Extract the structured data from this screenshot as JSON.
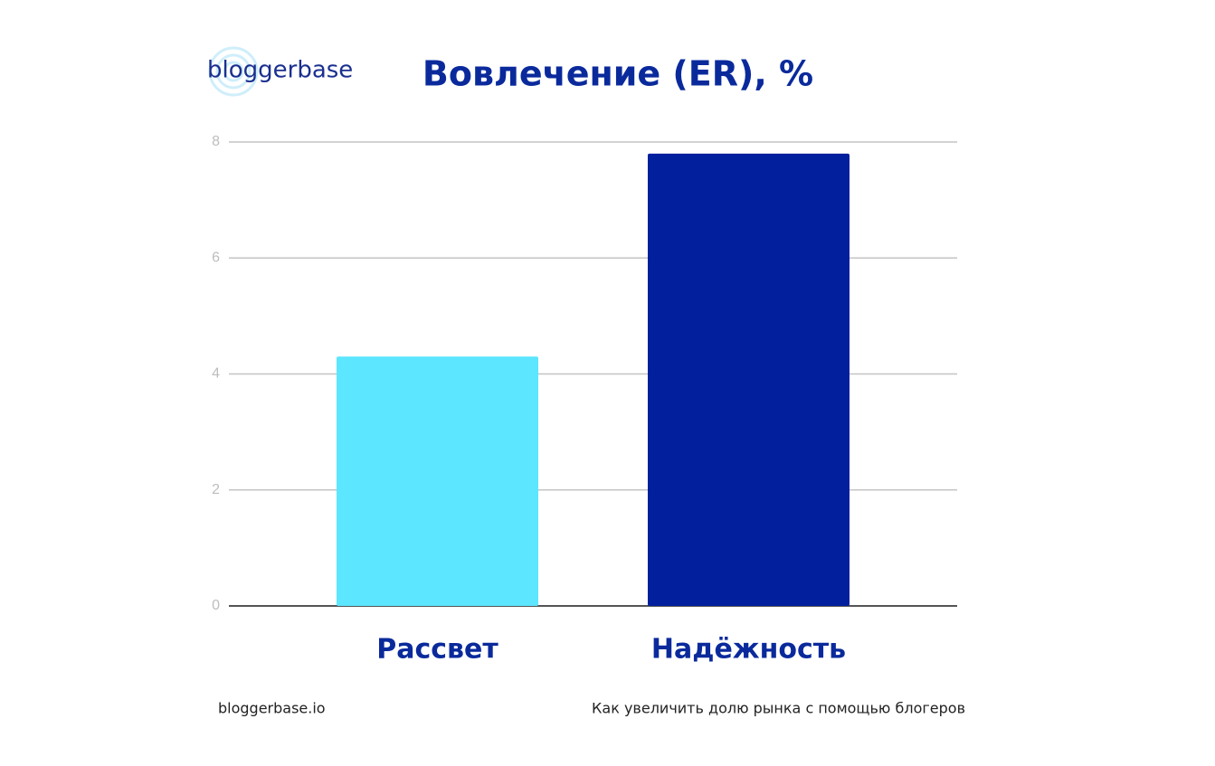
{
  "logo": "bloggerbase",
  "footer": {
    "left": "bloggerbase.io",
    "right": "Как увеличить долю рынка с помощью блогеров"
  },
  "chart_data": {
    "type": "bar",
    "title": "Вовлечение (ER), %",
    "categories": [
      "Рассвет",
      "Надёжность"
    ],
    "values": [
      4.3,
      7.8
    ],
    "colors": [
      "#5ce6ff",
      "#021f9e"
    ],
    "ylim": [
      0,
      8
    ],
    "yticks": [
      0,
      2,
      4,
      6,
      8
    ],
    "grid": true
  }
}
